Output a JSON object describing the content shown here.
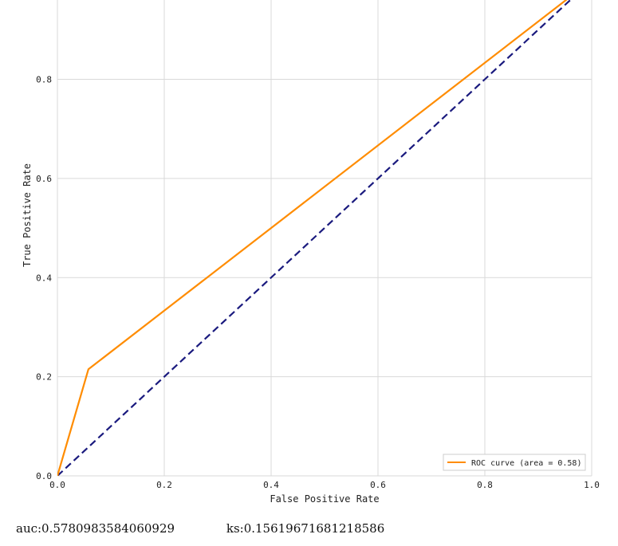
{
  "chart_data": {
    "type": "line",
    "title": "",
    "xlabel": "False Positive Rate",
    "ylabel": "True Positive Rate",
    "xlim": [
      0.0,
      1.0
    ],
    "ylim": [
      0.0,
      0.96
    ],
    "xticks": [
      "0.0",
      "0.2",
      "0.4",
      "0.6",
      "0.8",
      "1.0"
    ],
    "yticks": [
      "0.0",
      "0.2",
      "0.4",
      "0.6",
      "0.8"
    ],
    "grid": true,
    "legend_position": "lower right",
    "series": [
      {
        "name": "ROC curve (area = 0.58)",
        "style": "solid",
        "color": "#FF8C00",
        "x": [
          0.0,
          0.058,
          1.0
        ],
        "y": [
          0.0,
          0.215,
          1.0
        ]
      },
      {
        "style": "dashed",
        "color": "#1A1A7E",
        "x": [
          0.0,
          1.0
        ],
        "y": [
          0.0,
          1.0
        ]
      }
    ]
  },
  "metrics": {
    "auc": "auc:0.5780983584060929",
    "ks": "ks:0.15619671681218586"
  }
}
